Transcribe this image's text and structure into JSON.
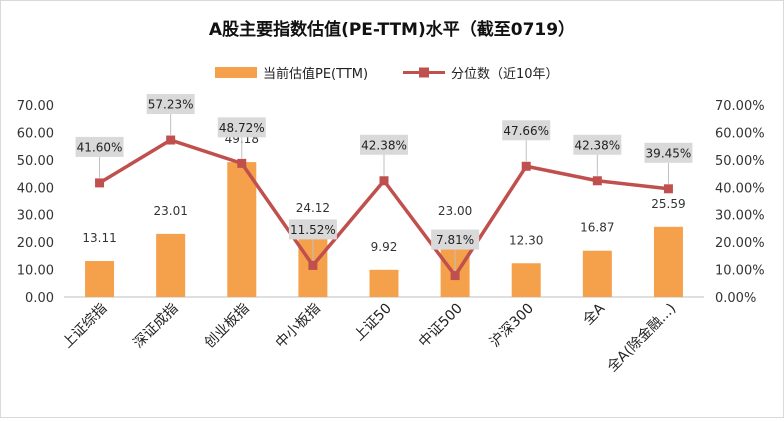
{
  "chart_data": {
    "type": "bar+line",
    "title": "A股主要指数估值(PE-TTM)水平（截至0719）",
    "categories": [
      "上证综指",
      "深证成指",
      "创业板指",
      "中小板指",
      "上证50",
      "中证500",
      "沪深300",
      "全A",
      "全A(除金融...)"
    ],
    "series": [
      {
        "name": "当前估值PE(TTM)",
        "type": "bar",
        "axis": "left",
        "values": [
          13.11,
          23.01,
          49.18,
          24.12,
          9.92,
          23.0,
          12.3,
          16.87,
          25.59
        ],
        "labels": [
          "13.11",
          "23.01",
          "49.18",
          "24.12",
          "9.92",
          "23.00",
          "12.30",
          "16.87",
          "25.59"
        ],
        "color": "#F5A04A"
      },
      {
        "name": "分位数（近10年）",
        "type": "line",
        "axis": "right",
        "values": [
          41.6,
          57.23,
          48.72,
          11.52,
          42.38,
          7.81,
          47.66,
          42.38,
          39.45
        ],
        "labels": [
          "41.60%",
          "57.23%",
          "48.72%",
          "11.52%",
          "42.38%",
          "7.81%",
          "47.66%",
          "42.38%",
          "39.45%"
        ],
        "color": "#C0504D"
      }
    ],
    "left_axis": {
      "range": [
        0,
        70
      ],
      "ticks": [
        0,
        10,
        20,
        30,
        40,
        50,
        60,
        70
      ],
      "tick_labels": [
        "0.00",
        "10.00",
        "20.00",
        "30.00",
        "40.00",
        "50.00",
        "60.00",
        "70.00"
      ]
    },
    "right_axis": {
      "range": [
        0,
        70
      ],
      "ticks": [
        0,
        10,
        20,
        30,
        40,
        50,
        60,
        70
      ],
      "tick_labels": [
        "0.00%",
        "10.00%",
        "20.00%",
        "30.00%",
        "40.00%",
        "50.00%",
        "60.00%",
        "70.00%"
      ]
    },
    "grid": false,
    "legend_position": "top-center",
    "colors": {
      "label_box": "#D9D9D9",
      "axis": "#BFBFBF"
    }
  }
}
